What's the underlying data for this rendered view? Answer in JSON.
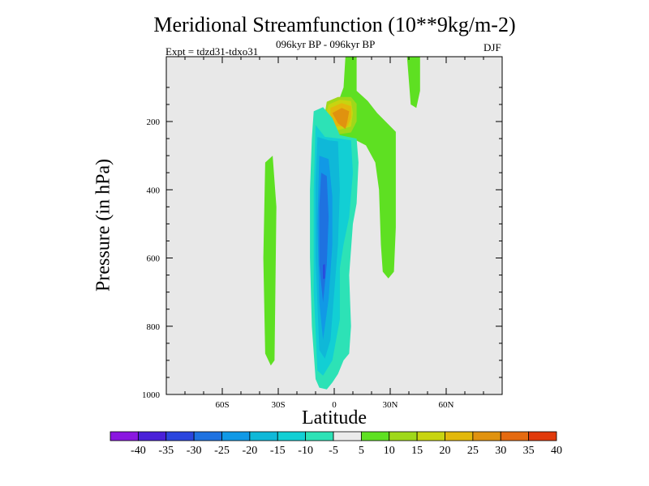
{
  "chart_data": {
    "type": "heatmap",
    "title": "Meridional Streamfunction (10**9kg/m-2)",
    "subtitle": "096kyr BP - 096kyr BP",
    "experiment": "Expt = tdzd31-tdxo31",
    "season": "DJF",
    "xlabel": "Latitude",
    "ylabel": "Pressure (in hPa)",
    "xlim": [
      -90,
      90
    ],
    "ylim": [
      1000,
      10
    ],
    "y_reversed": true,
    "x_ticks": [
      {
        "value": -60,
        "label": "60S"
      },
      {
        "value": -30,
        "label": "30S"
      },
      {
        "value": 0,
        "label": "0"
      },
      {
        "value": 30,
        "label": "30N"
      },
      {
        "value": 60,
        "label": "60N"
      }
    ],
    "y_ticks": [
      {
        "value": 200,
        "label": "200"
      },
      {
        "value": 400,
        "label": "400"
      },
      {
        "value": 600,
        "label": "600"
      },
      {
        "value": 800,
        "label": "800"
      },
      {
        "value": 1000,
        "label": "1000"
      }
    ],
    "background_color": "#e8e8e8",
    "levels": [
      -40,
      -35,
      -30,
      -25,
      -20,
      -15,
      -10,
      -5,
      5,
      10,
      15,
      20,
      25,
      30,
      35,
      40
    ],
    "colorbar_colors": [
      "#8a17e0",
      "#4a20d8",
      "#2b46de",
      "#1e72e0",
      "#1199e6",
      "#0fb8d8",
      "#12cfd4",
      "#2de2b6",
      "#ebebeb",
      "#5ee022",
      "#9fd81a",
      "#c8d410",
      "#e2b80c",
      "#e0920f",
      "#e56a10",
      "#e03a0c"
    ],
    "contour_regions": [
      {
        "name": "nh-upper-positive-cell",
        "level": 5,
        "color": "#5ee022",
        "polygon": [
          [
            6,
            10
          ],
          [
            12,
            10
          ],
          [
            12,
            110
          ],
          [
            18,
            140
          ],
          [
            23,
            175
          ],
          [
            33,
            230
          ],
          [
            33,
            350
          ],
          [
            33,
            510
          ],
          [
            32,
            640
          ],
          [
            29,
            660
          ],
          [
            26,
            640
          ],
          [
            25,
            560
          ],
          [
            24,
            400
          ],
          [
            22,
            320
          ],
          [
            17,
            270
          ],
          [
            10,
            250
          ],
          [
            2,
            255
          ],
          [
            -4,
            235
          ],
          [
            -6,
            200
          ],
          [
            -4,
            165
          ],
          [
            -1,
            140
          ],
          [
            3,
            130
          ],
          [
            5,
            100
          ]
        ]
      },
      {
        "name": "nh-upper-positive-cell",
        "level": 10,
        "color": "#9fd81a",
        "polygon": [
          [
            -4,
            142
          ],
          [
            2,
            128
          ],
          [
            9,
            128
          ],
          [
            12,
            148
          ],
          [
            12,
            200
          ],
          [
            9,
            232
          ],
          [
            2,
            238
          ],
          [
            -3,
            215
          ],
          [
            -5,
            175
          ]
        ]
      },
      {
        "name": "nh-upper-positive-cell",
        "level": 15,
        "color": "#c8d410",
        "polygon": [
          [
            -3,
            150
          ],
          [
            3,
            136
          ],
          [
            9,
            140
          ],
          [
            10,
            175
          ],
          [
            9,
            215
          ],
          [
            2,
            225
          ],
          [
            -2,
            205
          ],
          [
            -4,
            170
          ]
        ]
      },
      {
        "name": "nh-upper-positive-cell",
        "level": 20,
        "color": "#e2b80c",
        "polygon": [
          [
            -2,
            160
          ],
          [
            4,
            146
          ],
          [
            9,
            155
          ],
          [
            9,
            190
          ],
          [
            7,
            215
          ],
          [
            1,
            214
          ],
          [
            -2,
            190
          ]
        ]
      },
      {
        "name": "nh-upper-positive-cell",
        "level": 25,
        "color": "#e0920f",
        "polygon": [
          [
            -1,
            175
          ],
          [
            4,
            160
          ],
          [
            8,
            170
          ],
          [
            7,
            200
          ],
          [
            6,
            222
          ],
          [
            2,
            205
          ]
        ]
      },
      {
        "name": "sh-outer-positive-band",
        "level": 5,
        "color": "#5ee022",
        "polygon": [
          [
            -37,
            320
          ],
          [
            -33,
            300
          ],
          [
            -31,
            450
          ],
          [
            -32,
            900
          ],
          [
            -34,
            915
          ],
          [
            -37,
            880
          ],
          [
            -38,
            600
          ]
        ]
      },
      {
        "name": "nh-high-lat-positive",
        "level": 5,
        "color": "#5ee022",
        "polygon": [
          [
            39,
            10
          ],
          [
            46,
            10
          ],
          [
            46,
            110
          ],
          [
            44,
            160
          ],
          [
            41,
            150
          ],
          [
            40,
            80
          ]
        ]
      },
      {
        "name": "tropical-negative-cell",
        "level": -5,
        "color": "#2de2b6",
        "polygon": [
          [
            -11,
            170
          ],
          [
            -6,
            158
          ],
          [
            -1,
            190
          ],
          [
            3,
            240
          ],
          [
            12,
            250
          ],
          [
            13,
            320
          ],
          [
            12,
            440
          ],
          [
            10,
            500
          ],
          [
            8,
            650
          ],
          [
            9,
            800
          ],
          [
            8,
            880
          ],
          [
            5,
            900
          ],
          [
            2,
            940
          ],
          [
            -1,
            965
          ],
          [
            -4,
            985
          ],
          [
            -8,
            980
          ],
          [
            -10,
            955
          ],
          [
            -12,
            800
          ],
          [
            -13,
            600
          ],
          [
            -13,
            400
          ],
          [
            -12,
            250
          ]
        ]
      },
      {
        "name": "tropical-negative-cell",
        "level": -10,
        "color": "#12cfd4",
        "polygon": [
          [
            -10,
            210
          ],
          [
            -5,
            245
          ],
          [
            3,
            250
          ],
          [
            9,
            255
          ],
          [
            10,
            350
          ],
          [
            8,
            480
          ],
          [
            5,
            560
          ],
          [
            3,
            630
          ],
          [
            3,
            780
          ],
          [
            -1,
            900
          ],
          [
            -6,
            945
          ],
          [
            -9,
            930
          ],
          [
            -11,
            700
          ],
          [
            -11,
            400
          ]
        ]
      },
      {
        "name": "tropical-negative-cell",
        "level": -15,
        "color": "#0fb8d8",
        "polygon": [
          [
            -9,
            245
          ],
          [
            -3,
            255
          ],
          [
            2,
            258
          ],
          [
            3,
            400
          ],
          [
            2,
            560
          ],
          [
            0,
            700
          ],
          [
            -2,
            840
          ],
          [
            -5,
            895
          ],
          [
            -8,
            870
          ],
          [
            -10,
            600
          ],
          [
            -10,
            380
          ]
        ]
      },
      {
        "name": "tropical-negative-cell",
        "level": -20,
        "color": "#1199e6",
        "polygon": [
          [
            -8,
            300
          ],
          [
            -3,
            310
          ],
          [
            -1,
            420
          ],
          [
            -1,
            560
          ],
          [
            -3,
            720
          ],
          [
            -6,
            840
          ],
          [
            -8,
            730
          ],
          [
            -9,
            500
          ]
        ]
      },
      {
        "name": "tropical-negative-cell",
        "level": -25,
        "color": "#1e72e0",
        "polygon": [
          [
            -7,
            350
          ],
          [
            -4,
            360
          ],
          [
            -3,
            480
          ],
          [
            -4,
            620
          ],
          [
            -6,
            730
          ],
          [
            -8,
            620
          ],
          [
            -8,
            450
          ]
        ]
      },
      {
        "name": "tropical-negative-cell",
        "level": -30,
        "color": "#2b46de",
        "polygon": [
          [
            -6,
            620
          ],
          [
            -5,
            618
          ],
          [
            -5,
            660
          ],
          [
            -6,
            662
          ]
        ]
      }
    ]
  }
}
